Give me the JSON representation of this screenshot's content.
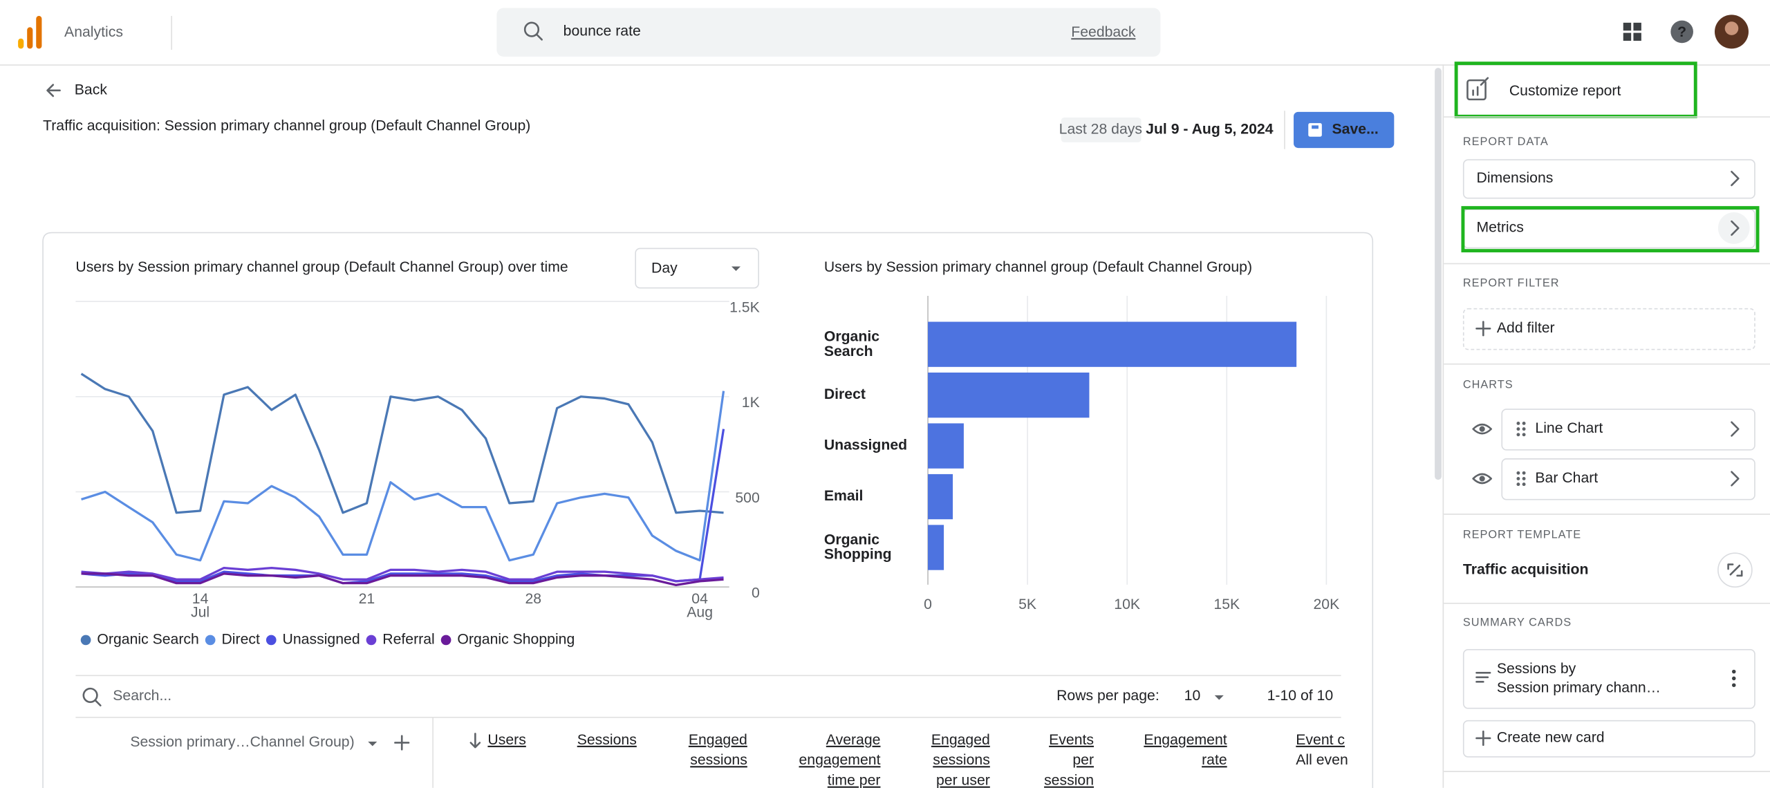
{
  "header": {
    "product": "Analytics",
    "search_query": "bounce rate",
    "feedback": "Feedback"
  },
  "report": {
    "back": "Back",
    "title": "Traffic acquisition: Session primary channel group (Default Channel Group)",
    "date_range_label": "Last 28 days",
    "date_range": "Jul 9 - Aug 5, 2024",
    "save": "Save..."
  },
  "chart_data": [
    {
      "type": "line",
      "title": "Users by Session primary channel group (Default Channel Group) over time",
      "granularity": "Day",
      "categories": [
        null,
        null,
        null,
        null,
        null,
        "14",
        null,
        null,
        null,
        null,
        null,
        null,
        "21",
        null,
        null,
        null,
        null,
        null,
        null,
        "28",
        null,
        null,
        null,
        null,
        null,
        null,
        "04",
        null
      ],
      "category_months": [
        null,
        null,
        null,
        null,
        null,
        "Jul",
        null,
        null,
        null,
        null,
        null,
        null,
        null,
        null,
        null,
        null,
        null,
        null,
        null,
        null,
        null,
        null,
        null,
        null,
        null,
        null,
        "Aug",
        null
      ],
      "ylim": [
        0,
        1500
      ],
      "yticks": [
        0,
        500,
        {
          "value": 1000,
          "label": "1K"
        },
        {
          "value": 1500,
          "label": "1.5K"
        }
      ],
      "grid": true,
      "series": [
        {
          "name": "Organic Search",
          "color": "#4a78b5",
          "values": [
            1120,
            1040,
            1000,
            820,
            390,
            400,
            1010,
            1050,
            930,
            1010,
            720,
            390,
            440,
            1000,
            980,
            1000,
            930,
            780,
            440,
            450,
            940,
            1000,
            990,
            960,
            760,
            390,
            400,
            390
          ]
        },
        {
          "name": "Direct",
          "color": "#5a8de3",
          "values": [
            460,
            500,
            420,
            340,
            170,
            140,
            450,
            440,
            530,
            470,
            370,
            170,
            170,
            550,
            460,
            490,
            420,
            420,
            140,
            170,
            440,
            470,
            490,
            470,
            270,
            190,
            140,
            1030
          ]
        },
        {
          "name": "Unassigned",
          "color": "#4b4fe0",
          "values": [
            70,
            60,
            70,
            60,
            30,
            30,
            80,
            70,
            60,
            60,
            60,
            20,
            30,
            70,
            70,
            70,
            70,
            60,
            30,
            30,
            60,
            70,
            60,
            60,
            60,
            30,
            40,
            830
          ]
        },
        {
          "name": "Referral",
          "color": "#6a3fd4",
          "values": [
            80,
            70,
            80,
            70,
            40,
            40,
            100,
            90,
            100,
            90,
            70,
            40,
            40,
            90,
            90,
            80,
            90,
            80,
            40,
            40,
            80,
            80,
            80,
            70,
            60,
            30,
            40,
            50
          ]
        },
        {
          "name": "Organic Shopping",
          "color": "#6a1b9a",
          "values": [
            70,
            70,
            60,
            60,
            20,
            20,
            70,
            60,
            60,
            50,
            60,
            20,
            20,
            60,
            60,
            60,
            60,
            50,
            20,
            20,
            50,
            60,
            60,
            50,
            40,
            10,
            30,
            40
          ]
        }
      ]
    },
    {
      "type": "bar",
      "orientation": "horizontal",
      "title": "Users by Session primary channel group (Default Channel Group)",
      "categories": [
        "Organic Search",
        "Direct",
        "Unassigned",
        "Email",
        "Organic Shopping"
      ],
      "values": [
        18500,
        8100,
        1800,
        1250,
        800
      ],
      "color": "#4d73e0",
      "xlim": [
        0,
        20000
      ],
      "xticks": [
        0,
        {
          "value": 5000,
          "label": "5K"
        },
        {
          "value": 10000,
          "label": "10K"
        },
        {
          "value": 15000,
          "label": "15K"
        },
        {
          "value": 20000,
          "label": "20K"
        }
      ],
      "grid": true
    }
  ],
  "table": {
    "search_placeholder": "Search...",
    "rows_per_page_label": "Rows per page:",
    "rows_per_page": "10",
    "pagination": "1-10 of 10",
    "dimension_header": "Session primary…Channel Group)",
    "metric_headers": [
      [
        "Users"
      ],
      [
        "Sessions"
      ],
      [
        "Engaged",
        "sessions"
      ],
      [
        "Average",
        "engagement",
        "time per"
      ],
      [
        "Engaged",
        "sessions",
        "per user"
      ],
      [
        "Events",
        "per",
        "session"
      ],
      [
        "Engagement",
        "rate"
      ],
      [
        "Event c",
        "All even"
      ]
    ]
  },
  "sidebar": {
    "title": "Customize report",
    "report_data": {
      "label": "REPORT DATA",
      "items": [
        "Dimensions",
        "Metrics"
      ]
    },
    "report_filter": {
      "label": "REPORT FILTER",
      "add": "Add filter"
    },
    "charts": {
      "label": "CHARTS",
      "items": [
        "Line Chart",
        "Bar Chart"
      ]
    },
    "report_template": {
      "label": "REPORT TEMPLATE",
      "name": "Traffic acquisition"
    },
    "summary_cards": {
      "label": "SUMMARY CARDS",
      "card": [
        "Sessions by",
        "Session primary chann…"
      ],
      "create": "Create new card"
    }
  }
}
